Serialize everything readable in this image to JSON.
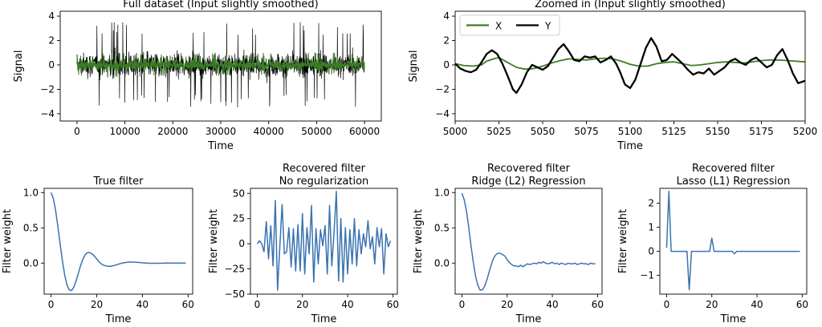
{
  "colors": {
    "green": "#3a7d24",
    "black": "#000000",
    "blue": "#3a73b0"
  },
  "chart_data": [
    {
      "id": "full",
      "type": "line",
      "title": "Full dataset (Input slightly smoothed)",
      "xlabel": "Time",
      "ylabel": "Signal",
      "xlim": [
        -3500,
        63500
      ],
      "ylim": [
        -4.6,
        4.4
      ],
      "xticks": [
        0,
        10000,
        20000,
        30000,
        40000,
        50000,
        60000
      ],
      "yticks": [
        -4,
        -2,
        0,
        2,
        4
      ],
      "series": [
        {
          "name": "Y",
          "color": "#000000",
          "band": {
            "x": [
              0,
              60000
            ],
            "center": 0,
            "typical": 1.2,
            "peak": 3.5
          }
        },
        {
          "name": "X",
          "color": "#3a7d24",
          "band": {
            "x": [
              0,
              60000
            ],
            "center": 0,
            "typical": 0.55,
            "peak": 1.0
          }
        }
      ]
    },
    {
      "id": "zoom",
      "type": "line",
      "title": "Zoomed in (Input slightly smoothed)",
      "xlabel": "Time",
      "ylabel": "Signal",
      "xlim": [
        5000,
        5200
      ],
      "ylim": [
        -4.6,
        4.4
      ],
      "xticks": [
        5000,
        5025,
        5050,
        5075,
        5100,
        5125,
        5150,
        5175,
        5200
      ],
      "yticks": [
        -4,
        -2,
        0,
        2,
        4
      ],
      "legend": {
        "position": "top-left",
        "entries": [
          "X",
          "Y"
        ]
      },
      "series": [
        {
          "name": "X",
          "color": "#3a7d24",
          "x": [
            5000,
            5005,
            5010,
            5015,
            5018,
            5022,
            5025,
            5030,
            5035,
            5040,
            5045,
            5050,
            5055,
            5060,
            5065,
            5070,
            5075,
            5080,
            5085,
            5090,
            5095,
            5100,
            5105,
            5110,
            5115,
            5120,
            5125,
            5130,
            5135,
            5140,
            5145,
            5150,
            5155,
            5160,
            5165,
            5170,
            5175,
            5180,
            5185,
            5190,
            5195,
            5200
          ],
          "y": [
            0.1,
            -0.05,
            -0.1,
            0.0,
            0.3,
            0.5,
            0.6,
            0.2,
            -0.2,
            -0.35,
            -0.3,
            -0.1,
            0.15,
            0.35,
            0.5,
            0.45,
            0.4,
            0.5,
            0.55,
            0.5,
            0.3,
            0.05,
            -0.1,
            -0.1,
            0.1,
            0.2,
            0.25,
            0.1,
            -0.05,
            0.0,
            0.1,
            0.2,
            0.25,
            0.2,
            0.15,
            0.25,
            0.35,
            0.4,
            0.4,
            0.35,
            0.3,
            0.25
          ]
        },
        {
          "name": "Y",
          "color": "#000000",
          "x": [
            5000,
            5003,
            5006,
            5009,
            5012,
            5015,
            5018,
            5021,
            5024,
            5027,
            5030,
            5033,
            5035,
            5038,
            5041,
            5044,
            5047,
            5050,
            5053,
            5056,
            5059,
            5062,
            5065,
            5068,
            5071,
            5074,
            5077,
            5080,
            5083,
            5086,
            5089,
            5092,
            5094,
            5097,
            5100,
            5103,
            5106,
            5109,
            5112,
            5115,
            5118,
            5121,
            5124,
            5127,
            5130,
            5133,
            5136,
            5139,
            5142,
            5145,
            5148,
            5151,
            5154,
            5157,
            5160,
            5163,
            5166,
            5169,
            5172,
            5175,
            5178,
            5181,
            5184,
            5187,
            5190,
            5193,
            5196,
            5200
          ],
          "y": [
            0.1,
            -0.3,
            -0.5,
            -0.6,
            -0.4,
            0.2,
            0.9,
            1.2,
            0.9,
            0.1,
            -0.9,
            -2.0,
            -2.3,
            -1.6,
            -0.6,
            0.0,
            -0.2,
            -0.4,
            -0.1,
            0.6,
            1.3,
            1.7,
            1.1,
            0.4,
            0.3,
            0.7,
            0.6,
            0.7,
            0.2,
            0.4,
            0.7,
            0.1,
            -0.5,
            -1.6,
            -1.9,
            -1.2,
            0.1,
            1.4,
            2.2,
            1.5,
            0.3,
            0.4,
            0.9,
            0.5,
            0.1,
            -0.4,
            -0.8,
            -0.6,
            -0.7,
            -0.3,
            -0.8,
            -0.5,
            -0.2,
            0.3,
            0.5,
            0.2,
            0.0,
            0.4,
            0.6,
            0.2,
            -0.2,
            0.0,
            0.8,
            1.3,
            0.4,
            -0.7,
            -1.5,
            -1.3
          ]
        }
      ]
    },
    {
      "id": "true",
      "type": "line",
      "title": "True filter",
      "xlabel": "Time",
      "ylabel": "Filter weight",
      "xlim": [
        -3,
        62
      ],
      "ylim": [
        -0.44,
        1.06
      ],
      "xticks": [
        0,
        20,
        40,
        60
      ],
      "yticks": [
        0.0,
        0.5,
        1.0
      ],
      "ytickLabels": [
        "0.0",
        "0.5",
        "1.0"
      ],
      "series": [
        {
          "name": "",
          "color": "#3a73b0",
          "x": [
            0,
            1,
            2,
            3,
            4,
            5,
            6,
            7,
            8,
            9,
            10,
            11,
            12,
            13,
            14,
            15,
            16,
            17,
            18,
            19,
            20,
            21,
            22,
            23,
            24,
            25,
            26,
            27,
            28,
            29,
            30,
            31,
            32,
            33,
            34,
            35,
            36,
            37,
            38,
            39,
            40,
            41,
            42,
            43,
            44,
            45,
            46,
            47,
            48,
            49,
            50,
            51,
            52,
            53,
            54,
            55,
            56,
            57,
            58,
            59
          ],
          "y": [
            1.0,
            0.92,
            0.75,
            0.52,
            0.27,
            0.03,
            -0.17,
            -0.31,
            -0.38,
            -0.39,
            -0.34,
            -0.25,
            -0.14,
            -0.03,
            0.06,
            0.12,
            0.15,
            0.15,
            0.13,
            0.1,
            0.06,
            0.02,
            -0.01,
            -0.03,
            -0.04,
            -0.045,
            -0.045,
            -0.04,
            -0.03,
            -0.02,
            -0.01,
            0.0,
            0.005,
            0.01,
            0.015,
            0.015,
            0.015,
            0.012,
            0.01,
            0.007,
            0.004,
            0.002,
            0.0,
            -0.002,
            -0.003,
            -0.003,
            -0.003,
            -0.003,
            -0.002,
            -0.001,
            0.0,
            0.0,
            0.0,
            0.0,
            0.0,
            0.0,
            0.0,
            0.0,
            0.0,
            0.0
          ]
        }
      ]
    },
    {
      "id": "noreg",
      "type": "line",
      "title": "Recovered filter\nNo regularization",
      "xlabel": "Time",
      "ylabel": "Filter weight",
      "xlim": [
        -3,
        62
      ],
      "ylim": [
        -50,
        55
      ],
      "xticks": [
        0,
        20,
        40,
        60
      ],
      "yticks": [
        -50,
        -25,
        0,
        25,
        50
      ],
      "series": [
        {
          "name": "",
          "color": "#3a73b0",
          "x": [
            0,
            1,
            2,
            3,
            4,
            5,
            6,
            7,
            8,
            9,
            10,
            11,
            12,
            13,
            14,
            15,
            16,
            17,
            18,
            19,
            20,
            21,
            22,
            23,
            24,
            25,
            26,
            27,
            28,
            29,
            30,
            31,
            32,
            33,
            34,
            35,
            36,
            37,
            38,
            39,
            40,
            41,
            42,
            43,
            44,
            45,
            46,
            47,
            48,
            49,
            50,
            51,
            52,
            53,
            54,
            55,
            56,
            57,
            58,
            59
          ],
          "y": [
            0,
            3,
            0,
            -8,
            22,
            -15,
            18,
            -22,
            43,
            -46,
            -3,
            39,
            -10,
            -8,
            16,
            -23,
            15,
            -27,
            19,
            -27,
            30,
            -30,
            16,
            -10,
            38,
            -38,
            15,
            -20,
            14,
            -2,
            18,
            -30,
            38,
            -22,
            12,
            52,
            -37,
            25,
            -38,
            16,
            -30,
            14,
            -20,
            25,
            -22,
            14,
            -10,
            10,
            -3,
            23,
            -5,
            7,
            -20,
            16,
            -3,
            15,
            -30,
            10,
            -3,
            3
          ]
        }
      ]
    },
    {
      "id": "ridge",
      "type": "line",
      "title": "Recovered filter\nRidge (L2) Regression",
      "xlabel": "Time",
      "ylabel": "Filter weight",
      "xlim": [
        -3,
        62
      ],
      "ylim": [
        -0.44,
        1.06
      ],
      "xticks": [
        0,
        20,
        40,
        60
      ],
      "yticks": [
        0.0,
        0.5,
        1.0
      ],
      "ytickLabels": [
        "0.0",
        "0.5",
        "1.0"
      ],
      "series": [
        {
          "name": "",
          "color": "#3a73b0",
          "x": [
            0,
            1,
            2,
            3,
            4,
            5,
            6,
            7,
            8,
            9,
            10,
            11,
            12,
            13,
            14,
            15,
            16,
            17,
            18,
            19,
            20,
            21,
            22,
            23,
            24,
            25,
            26,
            27,
            28,
            29,
            30,
            31,
            32,
            33,
            34,
            35,
            36,
            37,
            38,
            39,
            40,
            41,
            42,
            43,
            44,
            45,
            46,
            47,
            48,
            49,
            50,
            51,
            52,
            53,
            54,
            55,
            56,
            57,
            58,
            59
          ],
          "y": [
            0.99,
            0.9,
            0.74,
            0.51,
            0.25,
            0.02,
            -0.18,
            -0.31,
            -0.38,
            -0.38,
            -0.33,
            -0.24,
            -0.13,
            -0.02,
            0.07,
            0.12,
            0.14,
            0.14,
            0.12,
            0.1,
            0.05,
            0.01,
            -0.02,
            -0.04,
            -0.04,
            -0.05,
            -0.03,
            -0.05,
            -0.03,
            -0.01,
            -0.02,
            -0.01,
            0.0,
            -0.01,
            0.01,
            0.0,
            0.02,
            0.0,
            -0.01,
            0.0,
            0.01,
            -0.01,
            0.0,
            -0.02,
            0.0,
            -0.01,
            -0.02,
            0.0,
            -0.01,
            -0.01,
            0.0,
            -0.02,
            -0.01,
            0.0,
            -0.01,
            -0.01,
            -0.02,
            0.0,
            -0.01,
            -0.01
          ]
        }
      ]
    },
    {
      "id": "lasso",
      "type": "line",
      "title": "Recovered filter\nLasso (L1) Regression",
      "xlabel": "Time",
      "ylabel": "Filter weight",
      "xlim": [
        -3,
        62
      ],
      "ylim": [
        -1.78,
        2.62
      ],
      "xticks": [
        0,
        20,
        40,
        60
      ],
      "yticks": [
        -1,
        0,
        1,
        2
      ],
      "series": [
        {
          "name": "",
          "color": "#3a73b0",
          "x": [
            0,
            1,
            2,
            3,
            4,
            5,
            6,
            7,
            8,
            9,
            10,
            11,
            12,
            13,
            14,
            15,
            16,
            17,
            18,
            19,
            20,
            21,
            22,
            23,
            24,
            25,
            26,
            27,
            28,
            29,
            30,
            31,
            32,
            33,
            34,
            35,
            36,
            37,
            38,
            39,
            40,
            41,
            42,
            43,
            44,
            45,
            46,
            47,
            48,
            49,
            50,
            51,
            52,
            53,
            54,
            55,
            56,
            57,
            58,
            59
          ],
          "y": [
            0.15,
            2.5,
            0,
            0,
            0,
            0,
            0,
            0,
            0,
            0,
            -1.6,
            0,
            0,
            0,
            0,
            0,
            0,
            0,
            0,
            0,
            0.55,
            0,
            0,
            0,
            0,
            0,
            0,
            0,
            0,
            0,
            -0.1,
            0,
            0,
            0,
            0,
            0,
            0,
            0,
            0,
            0,
            0,
            0,
            0,
            0,
            0,
            0,
            0,
            0,
            0,
            0,
            0,
            0,
            0,
            0,
            0,
            0,
            0,
            0,
            0,
            0
          ]
        }
      ]
    }
  ]
}
